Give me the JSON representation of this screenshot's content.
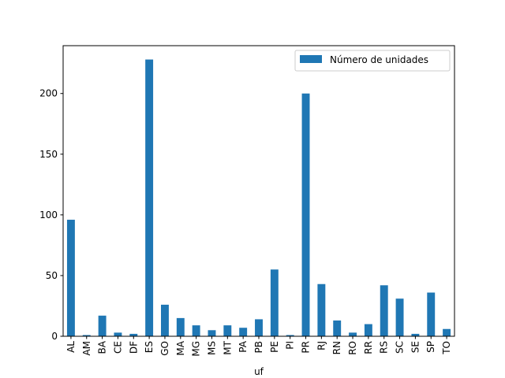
{
  "chart_data": {
    "type": "bar",
    "xlabel": "uf",
    "ylabel": "",
    "ylim": [
      0,
      239.4
    ],
    "yticks": [
      0,
      50,
      100,
      150,
      200
    ],
    "legend": {
      "placement": "top-right"
    },
    "bar_color": "#1f77b4",
    "categories": [
      "AL",
      "AM",
      "BA",
      "CE",
      "DF",
      "ES",
      "GO",
      "MA",
      "MG",
      "MS",
      "MT",
      "PA",
      "PB",
      "PE",
      "PI",
      "PR",
      "RJ",
      "RN",
      "RO",
      "RR",
      "RS",
      "SC",
      "SE",
      "SP",
      "TO"
    ],
    "series": [
      {
        "name": "Número de unidades",
        "values": [
          96,
          1,
          17,
          3,
          2,
          228,
          26,
          15,
          9,
          5,
          9,
          7,
          14,
          55,
          1,
          200,
          43,
          13,
          3,
          10,
          42,
          31,
          2,
          36,
          6
        ]
      }
    ]
  }
}
